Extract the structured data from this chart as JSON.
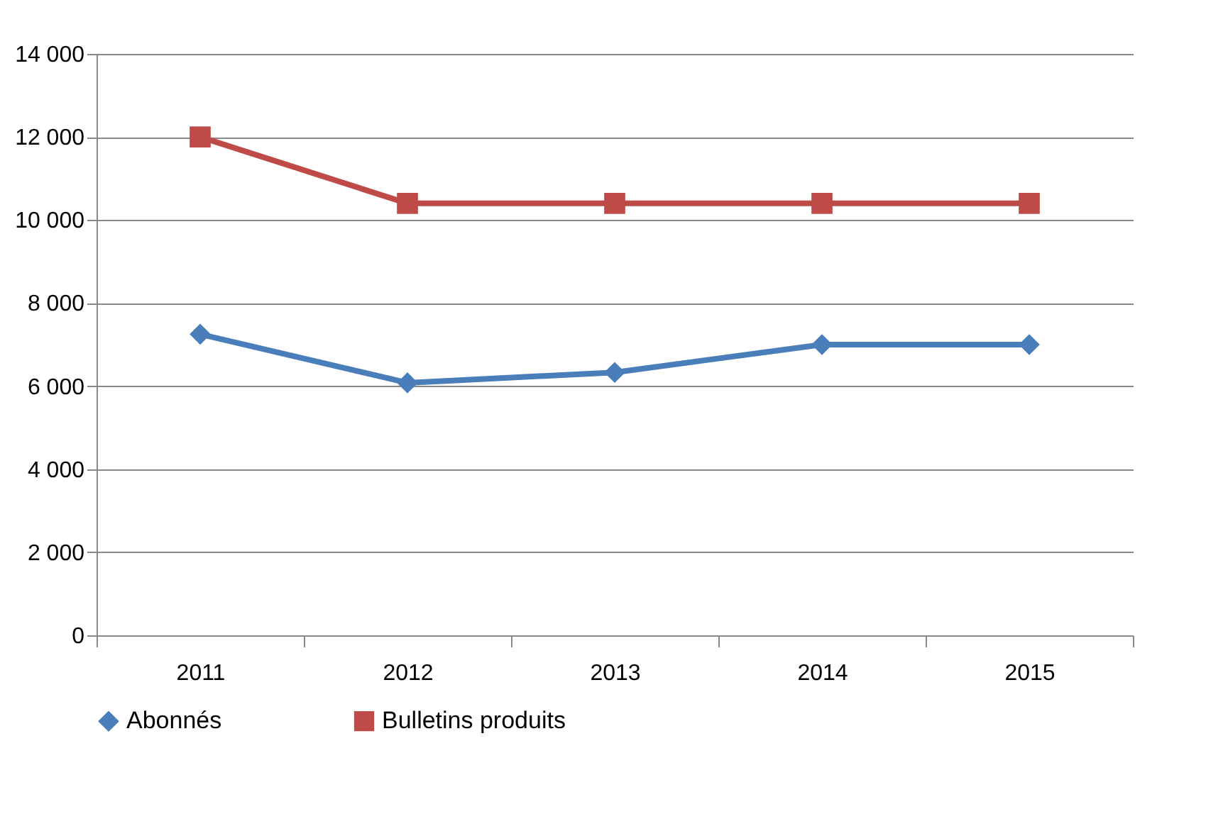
{
  "chart_data": {
    "type": "line",
    "categories": [
      "2011",
      "2012",
      "2013",
      "2014",
      "2015"
    ],
    "series": [
      {
        "name": "Abonnés",
        "color": "#4a7ebb",
        "marker": "diamond",
        "values": [
          7250,
          6080,
          6330,
          7000,
          7000
        ]
      },
      {
        "name": "Bulletins produits",
        "color": "#be4b48",
        "marker": "square",
        "values": [
          12000,
          10400,
          10400,
          10400,
          10400
        ]
      }
    ],
    "ylim": [
      0,
      14000
    ],
    "yticks": [
      {
        "value": 0,
        "label": "0"
      },
      {
        "value": 2000,
        "label": "2 000"
      },
      {
        "value": 4000,
        "label": "4 000"
      },
      {
        "value": 6000,
        "label": "6 000"
      },
      {
        "value": 8000,
        "label": "8 000"
      },
      {
        "value": 10000,
        "label": "10 000"
      },
      {
        "value": 12000,
        "label": "12 000"
      },
      {
        "value": 14000,
        "label": "14 000"
      }
    ],
    "grid": "y",
    "legend": "bottom",
    "line_style": "solid"
  }
}
